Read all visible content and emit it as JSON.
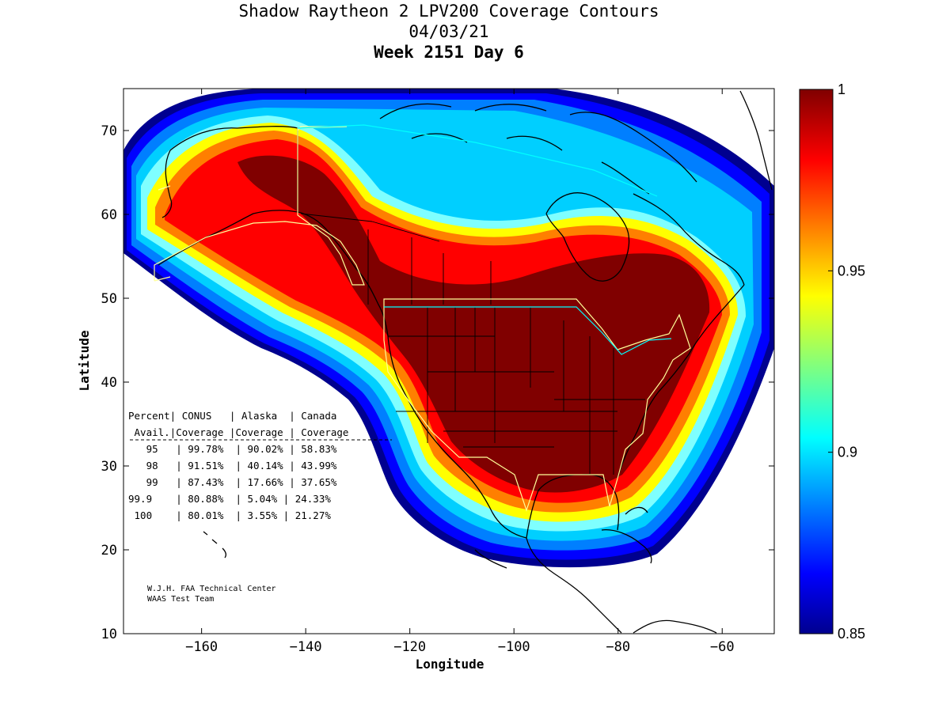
{
  "title": {
    "line1": "Shadow Raytheon 2 LPV200 Coverage Contours",
    "line2": "04/03/21",
    "line3": "Week 2151 Day 6"
  },
  "map": {
    "xlabel": "Longitude",
    "ylabel": "Latitude",
    "xlim": [
      -175,
      -50
    ],
    "ylim": [
      10,
      75
    ],
    "xticks": [
      -160,
      -140,
      -120,
      -100,
      -80,
      -60
    ],
    "yticks": [
      10,
      20,
      30,
      40,
      50,
      60,
      70
    ],
    "grid": false,
    "colorbar": {
      "min": 0.85,
      "max": 1,
      "ticks": [
        {
          "value": 1,
          "label": "1"
        },
        {
          "value": 0.95,
          "label": "0.95"
        },
        {
          "value": 0.9,
          "label": "0.9"
        },
        {
          "value": 0.85,
          "label": "0.85"
        }
      ],
      "colormap": "jet",
      "position": "right"
    },
    "layers": {
      "coverage_color_low": "#00008f",
      "coverage_color_high": "#800000",
      "coastline_color": "#000000",
      "service_boundary_color": "#ffff99",
      "canada_boundary_color": "#00ffff"
    }
  },
  "table": {
    "rows": [
      "Percent| CONUS   | Alaska  | Canada",
      " Avail.|Coverage |Coverage | Coverage",
      "   95   | 99.78%  | 90.02% | 58.83%",
      "   98   | 91.51%  | 40.14% | 43.99%",
      "   99   | 87.43%  | 17.66% | 37.65%",
      "99.9    | 80.88%  | 5.04% | 24.33%",
      " 100    | 80.01%  | 3.55% | 21.27%"
    ]
  },
  "credits": {
    "line1": "W.J.H. FAA Technical Center",
    "line2": "WAAS Test Team"
  }
}
